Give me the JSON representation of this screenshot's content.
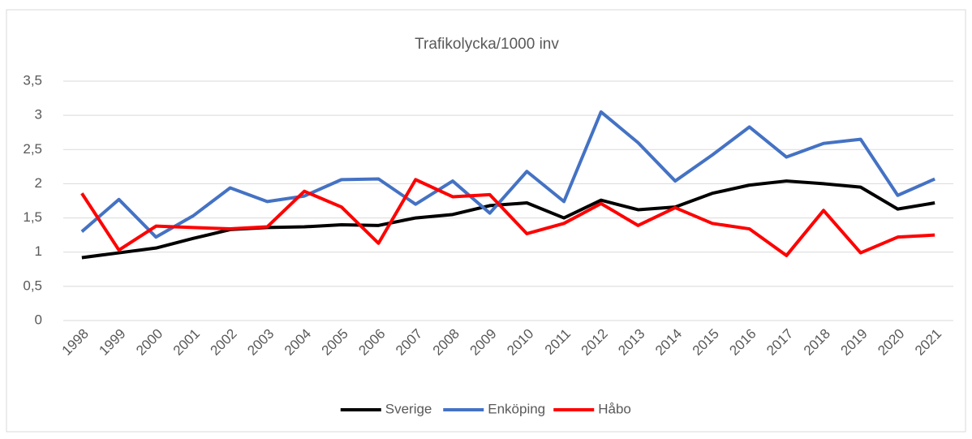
{
  "chart_data": {
    "type": "line",
    "title": "Trafikolycka/1000 inv",
    "categories": [
      "1998",
      "1999",
      "2000",
      "2001",
      "2002",
      "2003",
      "2004",
      "2005",
      "2006",
      "2007",
      "2008",
      "2009",
      "2010",
      "2011",
      "2012",
      "2013",
      "2014",
      "2015",
      "2016",
      "2017",
      "2018",
      "2019",
      "2020",
      "2021"
    ],
    "series": [
      {
        "name": "Sverige",
        "color": "#000000",
        "values": [
          0.92,
          0.99,
          1.06,
          1.2,
          1.33,
          1.36,
          1.37,
          1.4,
          1.39,
          1.5,
          1.55,
          1.68,
          1.72,
          1.5,
          1.76,
          1.62,
          1.66,
          1.86,
          1.98,
          2.04,
          2.0,
          1.95,
          1.63,
          1.72
        ]
      },
      {
        "name": "Enköping",
        "color": "#4472c4",
        "values": [
          1.3,
          1.77,
          1.22,
          1.53,
          1.94,
          1.74,
          1.82,
          2.06,
          2.07,
          1.7,
          2.04,
          1.57,
          2.18,
          1.74,
          3.05,
          2.6,
          2.04,
          2.42,
          2.83,
          2.39,
          2.59,
          2.65,
          1.83,
          2.07
        ]
      },
      {
        "name": "Håbo",
        "color": "#ff0000",
        "values": [
          1.86,
          1.03,
          1.38,
          1.36,
          1.34,
          1.37,
          1.89,
          1.66,
          1.13,
          2.06,
          1.81,
          1.84,
          1.27,
          1.42,
          1.71,
          1.39,
          1.65,
          1.42,
          1.34,
          0.95,
          1.61,
          0.99,
          1.22,
          1.25
        ]
      }
    ],
    "ylim": [
      0,
      3.5
    ],
    "yticks": [
      0,
      {
        "value": 0.5,
        "label": "0,5"
      },
      1,
      {
        "value": 1.5,
        "label": "1,5"
      },
      2,
      {
        "value": 2.5,
        "label": "2,5"
      },
      3,
      {
        "value": 3.5,
        "label": "3,5"
      }
    ],
    "grid": true,
    "legend": "bottom"
  }
}
